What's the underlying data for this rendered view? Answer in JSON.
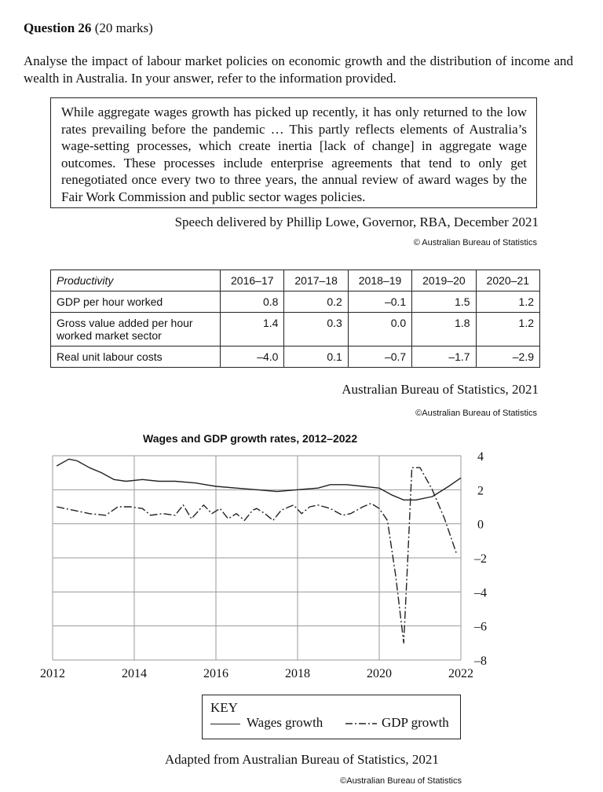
{
  "question": {
    "number": "Question 26",
    "marks": "(20 marks)",
    "text": "Analyse the impact of labour market policies on economic growth and the distribution of income and wealth in Australia. In your answer, refer to the information provided."
  },
  "quote": {
    "text": "While aggregate wages growth has picked up recently, it has only returned to the low rates prevailing before the pandemic … This partly reflects elements of Australia’s wage-setting processes, which create inertia [lack of change] in aggregate wage outcomes. These processes include enterprise agreements that tend to only get renegotiated once every two to three years, the annual review of award wages by the Fair Work Commission and public sector wages policies.",
    "source": "Speech delivered by Phillip Lowe, Governor, RBA, December 2021",
    "copyright": "© Australian Bureau of Statistics"
  },
  "table": {
    "header_label": "Productivity",
    "columns": [
      "2016–17",
      "2017–18",
      "2018–19",
      "2019–20",
      "2020–21"
    ],
    "rows": [
      {
        "label": "GDP per hour worked",
        "values": [
          "0.8",
          "0.2",
          "–0.1",
          "1.5",
          "1.2"
        ]
      },
      {
        "label": "Gross value added per hour worked market sector",
        "values": [
          "1.4",
          "0.3",
          "0.0",
          "1.8",
          "1.2"
        ]
      },
      {
        "label": "Real unit labour costs",
        "values": [
          "–4.0",
          "0.1",
          "–0.7",
          "–1.7",
          "–2.9"
        ]
      }
    ],
    "source": "Australian Bureau of Statistics, 2021",
    "copyright": "©Australian Bureau of Statistics"
  },
  "chart_data": {
    "type": "line",
    "title": "Wages and GDP growth rates, 2012–2022",
    "x_ticks": [
      "2012",
      "2014",
      "2016",
      "2018",
      "2020",
      "2022"
    ],
    "y_ticks": [
      "4",
      "2",
      "0",
      "–2",
      "–4",
      "–6",
      "–8"
    ],
    "xlim": [
      2012,
      2022
    ],
    "ylim": [
      -8,
      4
    ],
    "grid": true,
    "series": [
      {
        "name": "Wages growth",
        "style": "solid",
        "points": [
          [
            2012.1,
            3.4
          ],
          [
            2012.4,
            3.8
          ],
          [
            2012.6,
            3.7
          ],
          [
            2012.9,
            3.3
          ],
          [
            2013.2,
            3.0
          ],
          [
            2013.5,
            2.6
          ],
          [
            2013.8,
            2.5
          ],
          [
            2014.2,
            2.6
          ],
          [
            2014.6,
            2.5
          ],
          [
            2015.0,
            2.5
          ],
          [
            2015.5,
            2.4
          ],
          [
            2016.0,
            2.2
          ],
          [
            2016.5,
            2.1
          ],
          [
            2017.0,
            2.0
          ],
          [
            2017.5,
            1.9
          ],
          [
            2018.0,
            2.0
          ],
          [
            2018.5,
            2.1
          ],
          [
            2018.8,
            2.3
          ],
          [
            2019.2,
            2.3
          ],
          [
            2019.6,
            2.2
          ],
          [
            2020.0,
            2.1
          ],
          [
            2020.3,
            1.7
          ],
          [
            2020.6,
            1.4
          ],
          [
            2020.9,
            1.4
          ],
          [
            2021.3,
            1.6
          ],
          [
            2021.7,
            2.2
          ],
          [
            2022.0,
            2.7
          ]
        ]
      },
      {
        "name": "GDP growth",
        "style": "dash-dot",
        "points": [
          [
            2012.1,
            1.0
          ],
          [
            2012.5,
            0.8
          ],
          [
            2012.9,
            0.6
          ],
          [
            2013.3,
            0.5
          ],
          [
            2013.6,
            1.0
          ],
          [
            2013.9,
            1.0
          ],
          [
            2014.2,
            0.9
          ],
          [
            2014.4,
            0.5
          ],
          [
            2014.7,
            0.6
          ],
          [
            2015.0,
            0.5
          ],
          [
            2015.2,
            1.1
          ],
          [
            2015.4,
            0.3
          ],
          [
            2015.7,
            1.1
          ],
          [
            2015.9,
            0.6
          ],
          [
            2016.1,
            0.9
          ],
          [
            2016.3,
            0.3
          ],
          [
            2016.5,
            0.6
          ],
          [
            2016.7,
            0.2
          ],
          [
            2016.9,
            0.8
          ],
          [
            2017.0,
            0.9
          ],
          [
            2017.2,
            0.6
          ],
          [
            2017.4,
            0.2
          ],
          [
            2017.6,
            0.8
          ],
          [
            2017.9,
            1.1
          ],
          [
            2018.1,
            0.6
          ],
          [
            2018.3,
            1.0
          ],
          [
            2018.5,
            1.1
          ],
          [
            2018.8,
            0.9
          ],
          [
            2019.1,
            0.5
          ],
          [
            2019.3,
            0.6
          ],
          [
            2019.6,
            1.0
          ],
          [
            2019.8,
            1.2
          ],
          [
            2020.0,
            0.9
          ],
          [
            2020.2,
            0.2
          ],
          [
            2020.4,
            -3.0
          ],
          [
            2020.6,
            -7.0
          ],
          [
            2020.7,
            -2.0
          ],
          [
            2020.8,
            3.3
          ],
          [
            2021.0,
            3.3
          ],
          [
            2021.3,
            2.0
          ],
          [
            2021.6,
            0.3
          ],
          [
            2021.9,
            -1.8
          ]
        ]
      }
    ],
    "legend": {
      "title": "KEY",
      "position": "bottom-center"
    },
    "source": "Adapted from Australian Bureau of Statistics, 2021",
    "copyright": "©Australian Bureau of Statistics",
    "colors": {
      "line": "#222222",
      "grid": "#9a9a9a"
    }
  }
}
